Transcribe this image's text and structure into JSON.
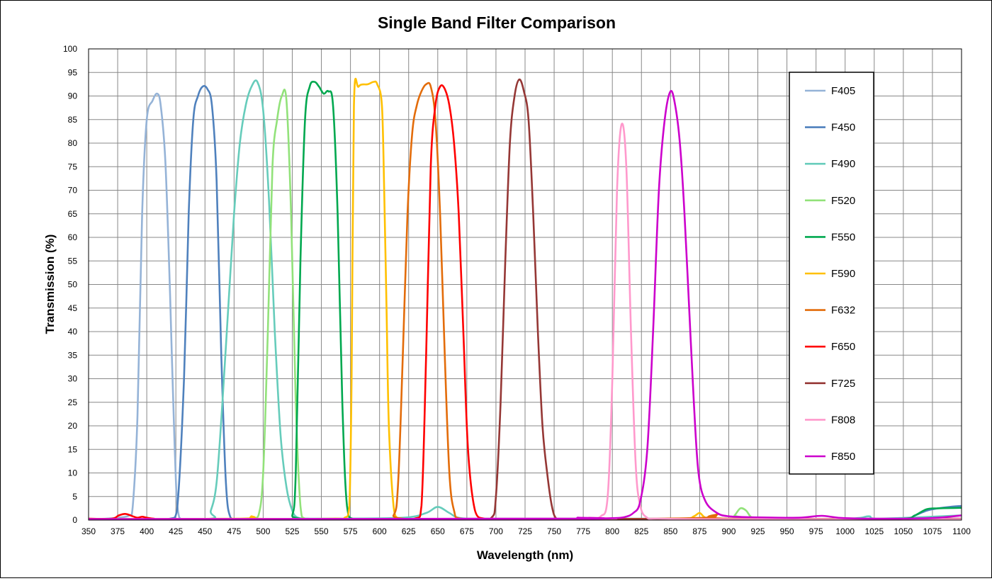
{
  "chart_data": {
    "type": "line",
    "title": "Single Band Filter Comparison",
    "xlabel": "Wavelength (nm)",
    "ylabel": "Transmission (%)",
    "xlim": [
      350,
      1100
    ],
    "ylim": [
      0,
      100
    ],
    "xticks": [
      350,
      375,
      400,
      425,
      450,
      475,
      500,
      525,
      550,
      575,
      600,
      625,
      650,
      675,
      700,
      725,
      750,
      775,
      800,
      825,
      850,
      875,
      900,
      925,
      950,
      975,
      1000,
      1025,
      1050,
      1075,
      1100
    ],
    "yticks": [
      0,
      5,
      10,
      15,
      20,
      25,
      30,
      35,
      40,
      45,
      50,
      55,
      60,
      65,
      70,
      75,
      80,
      85,
      90,
      95,
      100
    ],
    "grid": true,
    "legend_position": "right",
    "series": [
      {
        "name": "F405",
        "color": "#95B3D7",
        "x": [
          350,
          365,
          375,
          385,
          388,
          392,
          396,
          400,
          405,
          409,
          412,
          416,
          420,
          424,
          428,
          440,
          500,
          600,
          700,
          800,
          900,
          1000,
          1100
        ],
        "y": [
          0.2,
          0.3,
          0.5,
          1,
          3,
          22,
          65,
          85,
          89,
          90.5,
          88,
          76,
          48,
          15,
          0.5,
          0.2,
          0.2,
          0.2,
          0.2,
          0.2,
          0.2,
          0.2,
          0.2
        ]
      },
      {
        "name": "F450",
        "color": "#4F81BD",
        "x": [
          350,
          400,
          420,
          426,
          432,
          436,
          440,
          444,
          448,
          452,
          456,
          460,
          464,
          468,
          472,
          480,
          500,
          600,
          700,
          800,
          900,
          1000,
          1050,
          1060,
          1070,
          1080,
          1090,
          1100
        ],
        "y": [
          0.2,
          0.2,
          0.3,
          2,
          30,
          65,
          85,
          90,
          92,
          91.5,
          88,
          72,
          35,
          8,
          0.5,
          0.2,
          0.2,
          0.2,
          0.2,
          0.2,
          0.2,
          0.2,
          0.3,
          1,
          2,
          2.5,
          2.8,
          3
        ]
      },
      {
        "name": "F490",
        "color": "#66CCBB",
        "x": [
          350,
          450,
          455,
          460,
          465,
          470,
          475,
          480,
          485,
          490,
          495,
          500,
          505,
          510,
          515,
          520,
          525,
          530,
          540,
          560,
          620,
          640,
          650,
          660,
          670,
          700,
          800,
          900,
          1000,
          1020,
          1030,
          1100
        ],
        "y": [
          0.2,
          0.2,
          2,
          8,
          25,
          45,
          65,
          80,
          88,
          92,
          93,
          87,
          68,
          40,
          18,
          7,
          2,
          0.5,
          0.3,
          0.3,
          0.5,
          1.5,
          2.8,
          1.5,
          0.4,
          0.3,
          0.3,
          0.3,
          0.3,
          0.8,
          0.3,
          1
        ]
      },
      {
        "name": "F520",
        "color": "#92E27A",
        "x": [
          350,
          480,
          490,
          496,
          500,
          504,
          508,
          512,
          516,
          520,
          524,
          528,
          532,
          536,
          550,
          700,
          900,
          905,
          910,
          915,
          920,
          930,
          1000,
          1100
        ],
        "y": [
          0.2,
          0.2,
          0.6,
          1,
          10,
          40,
          75,
          85,
          90,
          89,
          65,
          25,
          3,
          0.3,
          0.2,
          0.2,
          0.2,
          1,
          2.5,
          2,
          0.5,
          0.2,
          0.2,
          0.2
        ]
      },
      {
        "name": "F550",
        "color": "#00A84F",
        "x": [
          350,
          520,
          525,
          528,
          532,
          536,
          540,
          544,
          548,
          552,
          556,
          560,
          564,
          568,
          572,
          578,
          600,
          700,
          800,
          900,
          1000,
          1050,
          1060,
          1070,
          1080,
          1100
        ],
        "y": [
          0.2,
          0.2,
          1,
          10,
          55,
          85,
          92,
          93,
          92,
          90.5,
          91,
          88,
          65,
          25,
          3,
          0.2,
          0.2,
          0.2,
          0.2,
          0.2,
          0.2,
          0.3,
          1,
          2.3,
          2.5,
          2.6
        ]
      },
      {
        "name": "F590",
        "color": "#FFC000",
        "x": [
          350,
          480,
          490,
          495,
          560,
          570,
          574,
          576,
          578,
          582,
          590,
          595,
          598,
          602,
          604,
          606,
          608,
          612,
          616,
          620,
          700,
          800,
          860,
          870,
          875,
          880,
          890,
          900,
          1100
        ],
        "y": [
          0.2,
          0.3,
          0.8,
          0.3,
          0.3,
          0.5,
          3,
          30,
          88,
          92,
          92.5,
          93,
          92.5,
          88,
          70,
          45,
          20,
          3,
          0.3,
          0.2,
          0.2,
          0.2,
          0.3,
          0.8,
          1.5,
          0.5,
          0.2,
          0.2,
          0.2
        ]
      },
      {
        "name": "F632",
        "color": "#E36C0A",
        "x": [
          350,
          600,
          612,
          616,
          620,
          624,
          628,
          632,
          636,
          640,
          644,
          648,
          652,
          656,
          660,
          664,
          670,
          700,
          800,
          880,
          890,
          900,
          1100
        ],
        "y": [
          0.2,
          0.2,
          1,
          8,
          35,
          65,
          82,
          88,
          91,
          92.5,
          92,
          85,
          65,
          35,
          10,
          2,
          0.3,
          0.2,
          0.2,
          0.5,
          1.2,
          0.3,
          0.2
        ]
      },
      {
        "name": "F650",
        "color": "#FF0000",
        "x": [
          350,
          370,
          376,
          382,
          388,
          392,
          396,
          400,
          406,
          420,
          600,
          630,
          636,
          640,
          644,
          648,
          652,
          656,
          660,
          664,
          668,
          672,
          676,
          682,
          690,
          700,
          1100
        ],
        "y": [
          0.3,
          0.3,
          1,
          1.3,
          0.8,
          0.5,
          0.7,
          0.5,
          0.3,
          0.2,
          0.2,
          0.3,
          3,
          35,
          75,
          88,
          92,
          91.5,
          88,
          80,
          65,
          40,
          15,
          2,
          0.3,
          0.2,
          0.2
        ]
      },
      {
        "name": "F725",
        "color": "#953735",
        "x": [
          350,
          680,
          696,
          700,
          704,
          708,
          712,
          716,
          720,
          724,
          728,
          732,
          736,
          740,
          744,
          748,
          752,
          760,
          800,
          900,
          1000,
          1100
        ],
        "y": [
          0.2,
          0.2,
          0.5,
          5,
          25,
          55,
          80,
          90,
          93.5,
          91,
          85,
          65,
          40,
          20,
          10,
          3,
          0.3,
          0.2,
          0.2,
          0.2,
          0.2,
          0.3
        ]
      },
      {
        "name": "F808",
        "color": "#FF99CC",
        "x": [
          350,
          770,
          780,
          790,
          796,
          800,
          804,
          808,
          812,
          816,
          820,
          824,
          830,
          840,
          900,
          1100
        ],
        "y": [
          0.2,
          0.3,
          0.5,
          0.8,
          5,
          30,
          70,
          84,
          75,
          40,
          12,
          3,
          0.5,
          0.3,
          0.2,
          0.2
        ]
      },
      {
        "name": "F850",
        "color": "#CC00CC",
        "x": [
          350,
          760,
          770,
          780,
          800,
          810,
          818,
          824,
          830,
          835,
          840,
          845,
          850,
          854,
          858,
          862,
          866,
          870,
          874,
          880,
          890,
          900,
          920,
          960,
          980,
          1000,
          1050,
          1080,
          1100
        ],
        "y": [
          0.2,
          0.3,
          0.5,
          0.3,
          0.4,
          0.6,
          1.5,
          4,
          15,
          40,
          70,
          85,
          91,
          88,
          80,
          65,
          45,
          25,
          10,
          4,
          1.5,
          0.8,
          0.6,
          0.5,
          0.9,
          0.4,
          0.3,
          0.5,
          1
        ]
      }
    ]
  }
}
